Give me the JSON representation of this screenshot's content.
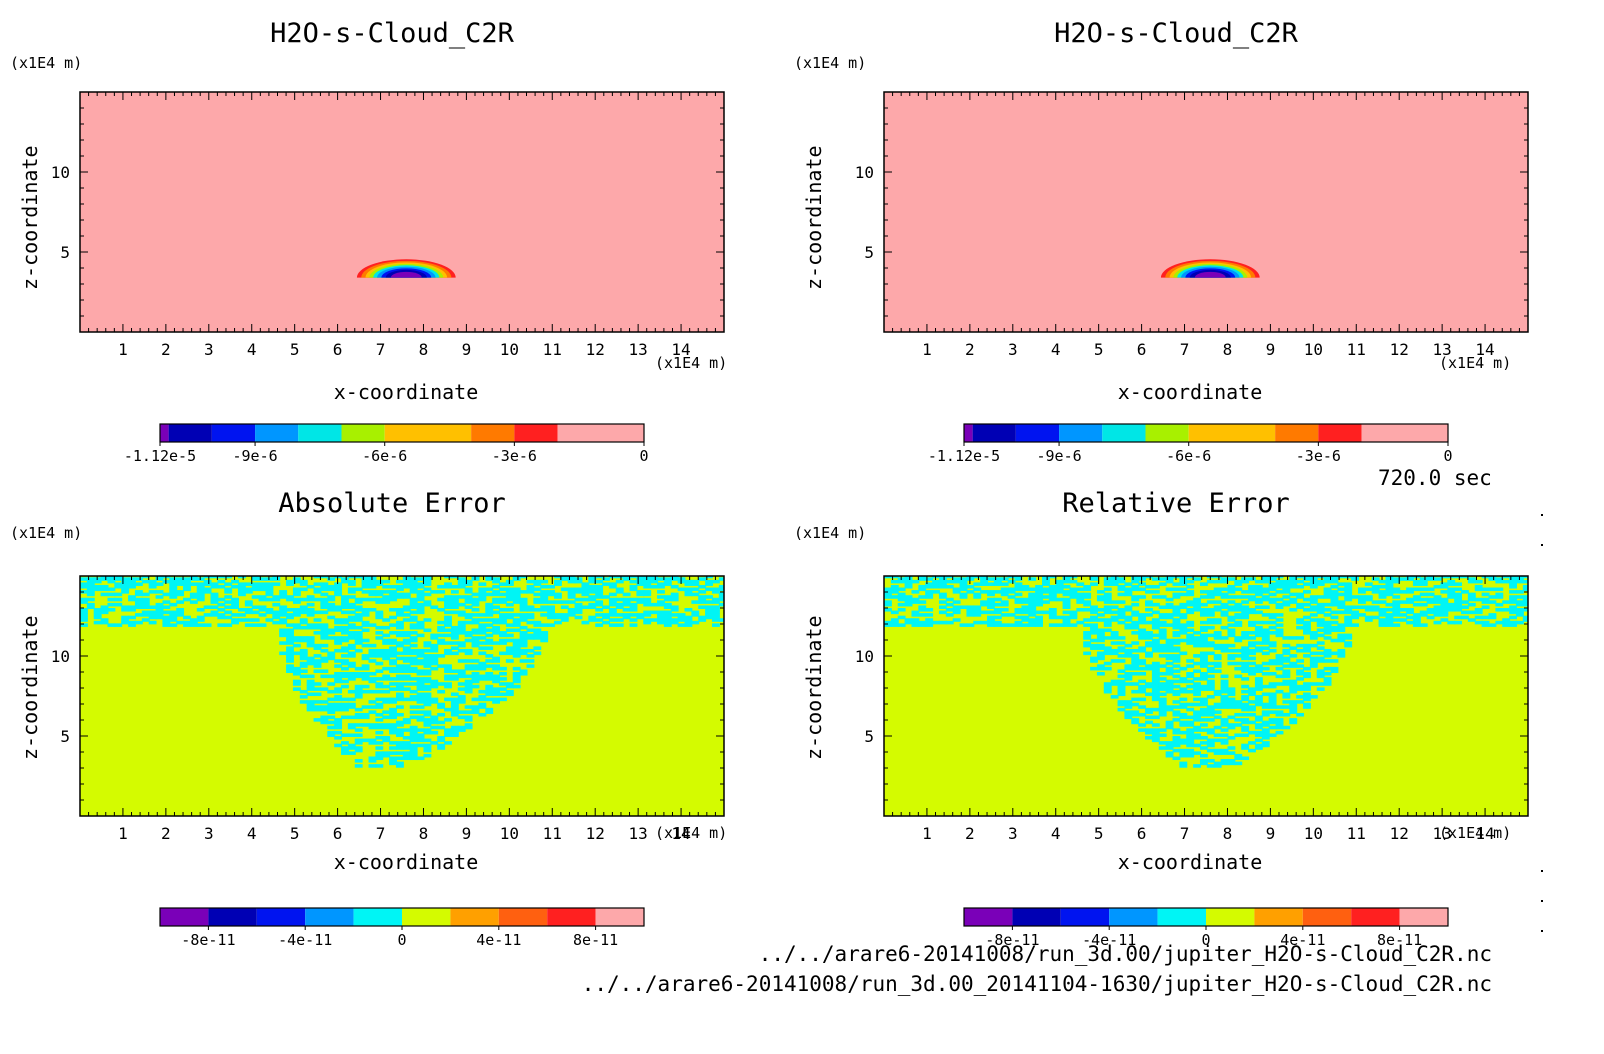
{
  "time_label": "720.0 sec",
  "file_paths": [
    "../../arare6-20141008/run_3d.00/jupiter_H2O-s-Cloud_C2R.nc",
    "../../arare6-20141008/run_3d.00_20141104-1630/jupiter_H2O-s-Cloud_C2R.nc"
  ],
  "colors": {
    "background_pink": "#fda8aa",
    "error_yellow": "#d4fb00",
    "error_cyan": "#00f5f5"
  },
  "chart_data": [
    {
      "type": "heatmap",
      "title": "H2O-s-Cloud_C2R",
      "xlabel": "x-coordinate",
      "ylabel": "z-coordinate",
      "x_unit": "(x1E4 m)",
      "y_unit": "(x1E4 m)",
      "xlim": [
        0,
        15
      ],
      "ylim": [
        0,
        15
      ],
      "x_ticks": [
        "1",
        "2",
        "3",
        "4",
        "5",
        "6",
        "7",
        "8",
        "9",
        "10",
        "11",
        "12",
        "13",
        "14"
      ],
      "y_ticks": [
        "5",
        "10"
      ],
      "field": "negative cloud-conversion tendency confined to a semicircular patch centered near x=7.6, z=3.4, radius about 1.15",
      "colorbar": {
        "colors": [
          "#7a00b8",
          "#0000b4",
          "#0014f0",
          "#0096ff",
          "#00e6e6",
          "#a8f000",
          "#ffc000",
          "#ff7a00",
          "#ff2020",
          "#fda8aa"
        ],
        "tick_labels": [
          "-1.12e-5",
          "-9e-6",
          "-6e-6",
          "-3e-6",
          "0"
        ],
        "tick_values": [
          -1.12e-05,
          -9e-06,
          -6e-06,
          -3e-06,
          0
        ],
        "range": [
          -1.12e-05,
          0
        ]
      }
    },
    {
      "type": "heatmap",
      "title": "H2O-s-Cloud_C2R",
      "xlabel": "x-coordinate",
      "ylabel": "z-coordinate",
      "x_unit": "(x1E4 m)",
      "y_unit": "(x1E4 m)",
      "xlim": [
        0,
        15
      ],
      "ylim": [
        0,
        15
      ],
      "x_ticks": [
        "1",
        "2",
        "3",
        "4",
        "5",
        "6",
        "7",
        "8",
        "9",
        "10",
        "11",
        "12",
        "13",
        "14"
      ],
      "y_ticks": [
        "5",
        "10"
      ],
      "field": "identical to left panel",
      "colorbar": {
        "colors": [
          "#7a00b8",
          "#0000b4",
          "#0014f0",
          "#0096ff",
          "#00e6e6",
          "#a8f000",
          "#ffc000",
          "#ff7a00",
          "#ff2020",
          "#fda8aa"
        ],
        "tick_labels": [
          "-1.12e-5",
          "-9e-6",
          "-6e-6",
          "-3e-6",
          "0"
        ],
        "tick_values": [
          -1.12e-05,
          -9e-06,
          -6e-06,
          -3e-06,
          0
        ],
        "range": [
          -1.12e-05,
          0
        ]
      }
    },
    {
      "type": "heatmap",
      "title": "Absolute Error",
      "xlabel": "x-coordinate",
      "ylabel": "z-coordinate",
      "x_unit": "(x1E4 m)",
      "y_unit": "(x1E4 m)",
      "xlim": [
        0,
        15
      ],
      "ylim": [
        0,
        15
      ],
      "x_ticks": [
        "1",
        "2",
        "3",
        "4",
        "5",
        "6",
        "7",
        "8",
        "9",
        "10",
        "11",
        "12",
        "13",
        "14"
      ],
      "y_ticks": [
        "5",
        "10"
      ],
      "field": "noise (0 vs slightly negative) above z=11.8 across domain and in a bowl from x=4.5 to 10.8 narrowing to x about 7 at z=3",
      "colorbar": {
        "colors": [
          "#7a00b8",
          "#0000b4",
          "#0014f0",
          "#0096ff",
          "#00f5f5",
          "#d4fb00",
          "#ffa000",
          "#ff6010",
          "#ff2020",
          "#fda8aa"
        ],
        "tick_labels": [
          "-8e-11",
          "-4e-11",
          "0",
          "4e-11",
          "8e-11"
        ],
        "tick_values": [
          -8e-11,
          -4e-11,
          0,
          4e-11,
          8e-11
        ],
        "range": [
          -1e-10,
          1e-10
        ]
      }
    },
    {
      "type": "heatmap",
      "title": "Relative Error",
      "xlabel": "x-coordinate",
      "ylabel": "z-coordinate",
      "x_unit": "(x1E4 m)",
      "y_unit": "(x1E4 m)",
      "xlim": [
        0,
        15
      ],
      "ylim": [
        0,
        15
      ],
      "x_ticks": [
        "1",
        "2",
        "3",
        "4",
        "5",
        "6",
        "7",
        "8",
        "9",
        "10",
        "11",
        "12",
        "13",
        "14"
      ],
      "y_ticks": [
        "5",
        "10"
      ],
      "field": "noise above z=11.8 and in a bowl from x=4.5 to 10.8 narrowing to x about 7.5 at z=3",
      "colorbar": {
        "colors": [
          "#7a00b8",
          "#0000b4",
          "#0014f0",
          "#0096ff",
          "#00f5f5",
          "#d4fb00",
          "#ffa000",
          "#ff6010",
          "#ff2020",
          "#fda8aa"
        ],
        "tick_labels": [
          "-8e-11",
          "-4e-11",
          "0",
          "4e-11",
          "8e-11"
        ],
        "tick_values": [
          -8e-11,
          -4e-11,
          0,
          4e-11,
          8e-11
        ],
        "range": [
          -1e-10,
          1e-10
        ]
      }
    }
  ]
}
